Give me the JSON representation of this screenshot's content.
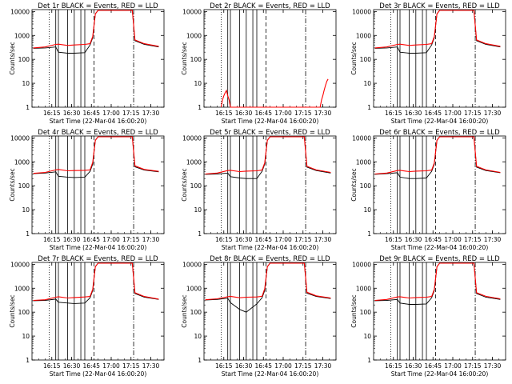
{
  "figure": {
    "xlabel": "Start Time (22-Mar-04 16:00:20)",
    "ylabel": "Counts/sec"
  },
  "shared_axes": {
    "x_ticks": [
      "16:15",
      "16:30",
      "16:45",
      "17:00",
      "17:15",
      "17:30"
    ],
    "y_ticks": [
      "1",
      "10",
      "100",
      "1000",
      "10000"
    ],
    "x_range": [
      "16:00",
      "17:40"
    ],
    "y_range": [
      1,
      12000
    ],
    "y_scale": "log"
  },
  "colors": {
    "events": "#000000",
    "lld": "#ff0000"
  },
  "chart_data": [
    {
      "type": "line",
      "title": "Det 1r BLACK = Events, RED = LLD",
      "xlabel": "Start Time (22-Mar-04 16:00:20)",
      "ylabel": "Counts/sec",
      "y_scale": "log",
      "ylim": [
        1,
        12000
      ],
      "series": [
        {
          "name": "Events",
          "x": [
            "16:01",
            "16:10",
            "16:18",
            "16:20",
            "16:27",
            "16:32",
            "16:40",
            "16:44",
            "16:46",
            "16:48",
            "16:50",
            "17:16",
            "17:18",
            "17:25",
            "17:36"
          ],
          "values": [
            290,
            300,
            330,
            200,
            180,
            180,
            190,
            400,
            800,
            8000,
            12000,
            12000,
            600,
            420,
            330
          ]
        },
        {
          "name": "LLD",
          "x": [
            "16:01",
            "16:10",
            "16:18",
            "16:20",
            "16:27",
            "16:32",
            "16:40",
            "16:44",
            "16:46",
            "16:48",
            "16:50",
            "17:16",
            "17:18",
            "17:25",
            "17:36"
          ],
          "values": [
            300,
            330,
            420,
            430,
            380,
            400,
            420,
            450,
            900,
            8000,
            12000,
            12000,
            650,
            450,
            350
          ]
        }
      ]
    },
    {
      "type": "line",
      "title": "Det 2r BLACK = Events, RED = LLD",
      "xlabel": "Start Time (22-Mar-04 16:00:20)",
      "ylabel": "Counts/sec",
      "y_scale": "log",
      "ylim": [
        1,
        12000
      ],
      "series": [
        {
          "name": "LLD",
          "x": [
            "16:13",
            "16:14",
            "16:15",
            "16:16",
            "16:17",
            "16:18",
            "16:19",
            "16:20",
            "17:28",
            "17:29",
            "17:30",
            "17:31",
            "17:32",
            "17:33",
            "17:34"
          ],
          "values": [
            1,
            2,
            3,
            4,
            5,
            3,
            2,
            1,
            1,
            2,
            3,
            5,
            8,
            12,
            15
          ]
        }
      ]
    },
    {
      "type": "line",
      "title": "Det 3r BLACK = Events, RED = LLD",
      "xlabel": "Start Time (22-Mar-04 16:00:20)",
      "ylabel": "Counts/sec",
      "y_scale": "log",
      "ylim": [
        1,
        12000
      ],
      "series": [
        {
          "name": "Events",
          "x": [
            "16:01",
            "16:10",
            "16:18",
            "16:20",
            "16:27",
            "16:32",
            "16:40",
            "16:44",
            "16:46",
            "16:48",
            "16:50",
            "17:16",
            "17:18",
            "17:25",
            "17:36"
          ],
          "values": [
            290,
            300,
            330,
            200,
            180,
            180,
            190,
            400,
            800,
            8000,
            12000,
            12000,
            600,
            420,
            330
          ]
        },
        {
          "name": "LLD",
          "x": [
            "16:01",
            "16:10",
            "16:18",
            "16:20",
            "16:27",
            "16:32",
            "16:40",
            "16:44",
            "16:46",
            "16:48",
            "16:50",
            "17:16",
            "17:18",
            "17:25",
            "17:36"
          ],
          "values": [
            300,
            330,
            420,
            430,
            380,
            400,
            420,
            450,
            900,
            8000,
            12000,
            12000,
            650,
            450,
            350
          ]
        }
      ]
    },
    {
      "type": "line",
      "title": "Det 4r BLACK = Events, RED = LLD",
      "xlabel": "Start Time (22-Mar-04 16:00:20)",
      "ylabel": "Counts/sec",
      "y_scale": "log",
      "ylim": [
        1,
        12000
      ],
      "series": [
        {
          "name": "Events",
          "x": [
            "16:01",
            "16:10",
            "16:18",
            "16:20",
            "16:27",
            "16:32",
            "16:40",
            "16:44",
            "16:46",
            "16:48",
            "16:50",
            "17:16",
            "17:18",
            "17:25",
            "17:36"
          ],
          "values": [
            320,
            340,
            380,
            250,
            230,
            220,
            230,
            400,
            800,
            8000,
            12000,
            12000,
            620,
            450,
            380
          ]
        },
        {
          "name": "LLD",
          "x": [
            "16:01",
            "16:10",
            "16:18",
            "16:20",
            "16:27",
            "16:32",
            "16:40",
            "16:44",
            "16:46",
            "16:48",
            "16:50",
            "17:16",
            "17:18",
            "17:25",
            "17:36"
          ],
          "values": [
            330,
            360,
            460,
            480,
            420,
            430,
            440,
            460,
            950,
            8000,
            12000,
            12000,
            680,
            480,
            400
          ]
        }
      ]
    },
    {
      "type": "line",
      "title": "Det 5r BLACK = Events, RED = LLD",
      "xlabel": "Start Time (22-Mar-04 16:00:20)",
      "ylabel": "Counts/sec",
      "y_scale": "log",
      "ylim": [
        1,
        12000
      ],
      "series": [
        {
          "name": "Events",
          "x": [
            "16:01",
            "16:10",
            "16:18",
            "16:20",
            "16:27",
            "16:32",
            "16:40",
            "16:44",
            "16:46",
            "16:48",
            "16:50",
            "17:16",
            "17:18",
            "17:25",
            "17:36"
          ],
          "values": [
            300,
            310,
            340,
            240,
            210,
            200,
            200,
            400,
            800,
            8000,
            12000,
            12000,
            600,
            430,
            340
          ]
        },
        {
          "name": "LLD",
          "x": [
            "16:01",
            "16:10",
            "16:18",
            "16:20",
            "16:27",
            "16:32",
            "16:40",
            "16:44",
            "16:46",
            "16:48",
            "16:50",
            "17:16",
            "17:18",
            "17:25",
            "17:36"
          ],
          "values": [
            310,
            340,
            430,
            440,
            390,
            410,
            420,
            450,
            900,
            8000,
            12000,
            12000,
            650,
            460,
            360
          ]
        }
      ]
    },
    {
      "type": "line",
      "title": "Det 6r BLACK = Events, RED = LLD",
      "xlabel": "Start Time (22-Mar-04 16:00:20)",
      "ylabel": "Counts/sec",
      "y_scale": "log",
      "ylim": [
        1,
        12000
      ],
      "series": [
        {
          "name": "Events",
          "x": [
            "16:01",
            "16:10",
            "16:18",
            "16:20",
            "16:27",
            "16:32",
            "16:40",
            "16:44",
            "16:46",
            "16:48",
            "16:50",
            "17:16",
            "17:18",
            "17:25",
            "17:36"
          ],
          "values": [
            300,
            320,
            350,
            230,
            200,
            200,
            210,
            400,
            800,
            8000,
            12000,
            12000,
            600,
            430,
            350
          ]
        },
        {
          "name": "LLD",
          "x": [
            "16:01",
            "16:10",
            "16:18",
            "16:20",
            "16:27",
            "16:32",
            "16:40",
            "16:44",
            "16:46",
            "16:48",
            "16:50",
            "17:16",
            "17:18",
            "17:25",
            "17:36"
          ],
          "values": [
            310,
            340,
            430,
            440,
            390,
            410,
            420,
            450,
            900,
            8000,
            12000,
            12000,
            650,
            460,
            360
          ]
        }
      ]
    },
    {
      "type": "line",
      "title": "Det 7r BLACK = Events, RED = LLD",
      "xlabel": "Start Time (22-Mar-04 16:00:20)",
      "ylabel": "Counts/sec",
      "y_scale": "log",
      "ylim": [
        1,
        12000
      ],
      "series": [
        {
          "name": "Events",
          "x": [
            "16:01",
            "16:10",
            "16:18",
            "16:20",
            "16:27",
            "16:32",
            "16:40",
            "16:44",
            "16:46",
            "16:48",
            "16:50",
            "17:16",
            "17:18",
            "17:25",
            "17:36"
          ],
          "values": [
            300,
            310,
            350,
            260,
            240,
            230,
            240,
            400,
            800,
            8000,
            12000,
            12000,
            600,
            420,
            340
          ]
        },
        {
          "name": "LLD",
          "x": [
            "16:01",
            "16:10",
            "16:18",
            "16:20",
            "16:27",
            "16:32",
            "16:40",
            "16:44",
            "16:46",
            "16:48",
            "16:50",
            "17:16",
            "17:18",
            "17:25",
            "17:36"
          ],
          "values": [
            310,
            330,
            420,
            440,
            390,
            410,
            430,
            450,
            900,
            8000,
            12000,
            12000,
            650,
            450,
            350
          ]
        }
      ]
    },
    {
      "type": "line",
      "title": "Det 8r BLACK = Events, RED = LLD",
      "xlabel": "Start Time (22-Mar-04 16:00:20)",
      "ylabel": "Counts/sec",
      "y_scale": "log",
      "ylim": [
        1,
        12000
      ],
      "series": [
        {
          "name": "Events",
          "x": [
            "16:01",
            "16:10",
            "16:18",
            "16:20",
            "16:27",
            "16:32",
            "16:40",
            "16:44",
            "16:46",
            "16:48",
            "16:50",
            "17:16",
            "17:18",
            "17:25",
            "17:36"
          ],
          "values": [
            320,
            340,
            380,
            250,
            130,
            100,
            220,
            400,
            800,
            8000,
            12000,
            12000,
            620,
            450,
            370
          ]
        },
        {
          "name": "LLD",
          "x": [
            "16:01",
            "16:10",
            "16:18",
            "16:20",
            "16:27",
            "16:32",
            "16:40",
            "16:44",
            "16:46",
            "16:48",
            "16:50",
            "17:16",
            "17:18",
            "17:25",
            "17:36"
          ],
          "values": [
            330,
            360,
            440,
            460,
            400,
            420,
            430,
            460,
            950,
            8000,
            12000,
            12000,
            680,
            480,
            390
          ]
        }
      ]
    },
    {
      "type": "line",
      "title": "Det 9r BLACK = Events, RED = LLD",
      "xlabel": "Start Time (22-Mar-04 16:00:20)",
      "ylabel": "Counts/sec",
      "y_scale": "log",
      "ylim": [
        1,
        12000
      ],
      "series": [
        {
          "name": "Events",
          "x": [
            "16:01",
            "16:10",
            "16:18",
            "16:20",
            "16:27",
            "16:32",
            "16:40",
            "16:44",
            "16:46",
            "16:48",
            "16:50",
            "17:16",
            "17:18",
            "17:25",
            "17:36"
          ],
          "values": [
            300,
            310,
            340,
            240,
            210,
            210,
            220,
            400,
            800,
            8000,
            12000,
            12000,
            600,
            420,
            340
          ]
        },
        {
          "name": "LLD",
          "x": [
            "16:01",
            "16:10",
            "16:18",
            "16:20",
            "16:27",
            "16:32",
            "16:40",
            "16:44",
            "16:46",
            "16:48",
            "16:50",
            "17:16",
            "17:18",
            "17:25",
            "17:36"
          ],
          "values": [
            310,
            340,
            430,
            440,
            390,
            410,
            420,
            450,
            900,
            8000,
            12000,
            12000,
            650,
            460,
            360
          ]
        }
      ]
    }
  ]
}
